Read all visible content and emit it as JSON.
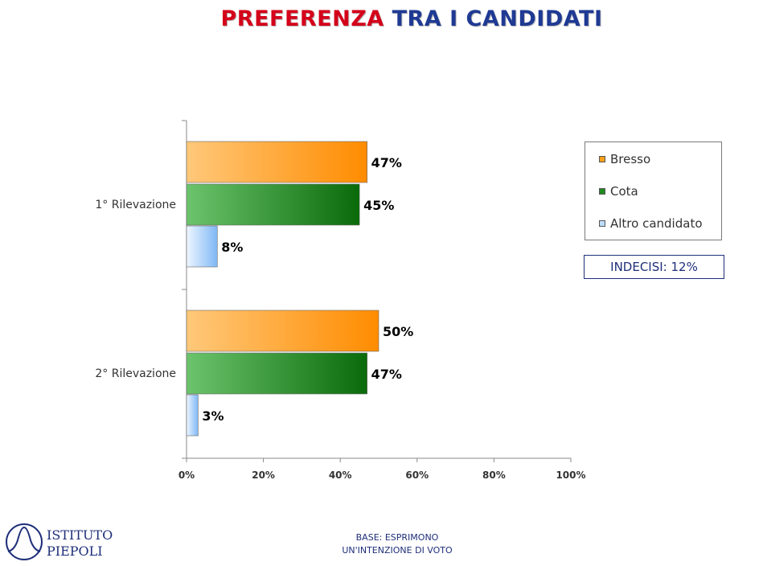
{
  "title": {
    "part1": "PREFERENZA",
    "part2": "TRA I CANDIDATI"
  },
  "chart_data": {
    "type": "bar",
    "orientation": "horizontal",
    "categories": [
      "1° Rilevazione",
      "2° Rilevazione"
    ],
    "series": [
      {
        "name": "Bresso",
        "values": [
          47,
          50
        ],
        "labels": [
          "47%",
          "50%"
        ],
        "color": "#ff8c00"
      },
      {
        "name": "Cota",
        "values": [
          45,
          47
        ],
        "labels": [
          "45%",
          "47%"
        ],
        "color": "#1f7a1f"
      },
      {
        "name": "Altro candidato",
        "values": [
          8,
          3
        ],
        "labels": [
          "8%",
          "3%"
        ],
        "color": "#a9d3ff"
      }
    ],
    "xlim": [
      0,
      100
    ],
    "x_ticks": [
      "0%",
      "20%",
      "40%",
      "60%",
      "80%",
      "100%"
    ],
    "grid": false,
    "legend": "right"
  },
  "undecided": "INDECISI: 12%",
  "footer": {
    "line1": "BASE: ESPRIMONO",
    "line2": "UN'INTENZIONE DI VOTO"
  },
  "logo": {
    "line1": "ISTITUTO",
    "line2": "PIEPOLI"
  }
}
